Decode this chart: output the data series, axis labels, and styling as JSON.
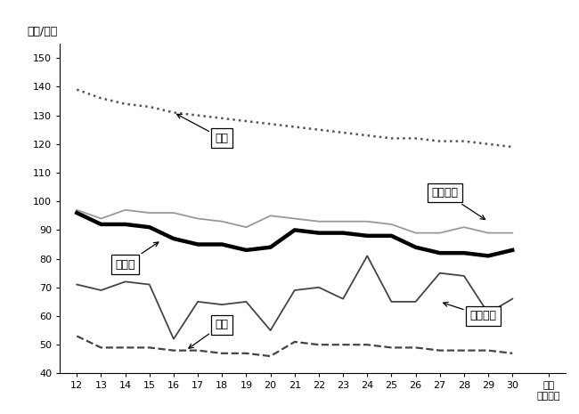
{
  "ylabel": "（㎡/戸）",
  "years": [
    12,
    13,
    14,
    15,
    16,
    17,
    18,
    19,
    20,
    21,
    22,
    23,
    24,
    25,
    26,
    27,
    28,
    29,
    30
  ],
  "ylim": [
    40,
    155
  ],
  "yticks": [
    40,
    50,
    60,
    70,
    80,
    90,
    100,
    110,
    120,
    130,
    140,
    150
  ],
  "持家": [
    139,
    136,
    134,
    133,
    131,
    130,
    129,
    128,
    127,
    126,
    125,
    124,
    123,
    122,
    122,
    121,
    121,
    120,
    119
  ],
  "分譲住宅": [
    97,
    94,
    97,
    96,
    96,
    94,
    93,
    91,
    95,
    94,
    93,
    93,
    93,
    92,
    89,
    89,
    91,
    89,
    89
  ],
  "総平均": [
    96,
    92,
    92,
    91,
    87,
    85,
    85,
    83,
    84,
    90,
    89,
    89,
    88,
    88,
    84,
    82,
    82,
    81,
    83
  ],
  "給与住宅": [
    71,
    69,
    72,
    71,
    52,
    65,
    64,
    65,
    55,
    69,
    70,
    66,
    81,
    65,
    65,
    75,
    74,
    61,
    66
  ],
  "賃家": [
    53,
    49,
    49,
    49,
    48,
    48,
    47,
    47,
    46,
    51,
    50,
    50,
    50,
    49,
    49,
    48,
    48,
    48,
    47
  ],
  "plot_bg": "#ffffff"
}
